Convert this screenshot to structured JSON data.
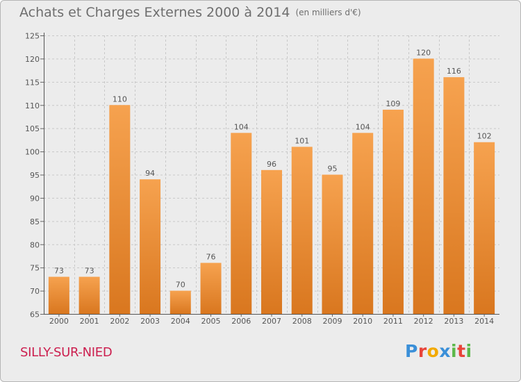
{
  "title": "Achats et Charges Externes 2000 à 2014",
  "unit_note": "(en milliers d'€)",
  "commune": "SILLY-SUR-NIED",
  "logo": "Proxiti",
  "colors": {
    "bar_top": "#f6a24f",
    "bar_bottom": "#d9771f",
    "commune": "#cc1f4f",
    "text": "#6e6e6e"
  },
  "chart_data": {
    "type": "bar",
    "categories": [
      "2000",
      "2001",
      "2002",
      "2003",
      "2004",
      "2005",
      "2006",
      "2007",
      "2008",
      "2009",
      "2010",
      "2011",
      "2012",
      "2013",
      "2014"
    ],
    "values": [
      73,
      73,
      110,
      94,
      70,
      76,
      104,
      96,
      101,
      95,
      104,
      109,
      120,
      116,
      102
    ],
    "title": "Achats et Charges Externes 2000 à 2014",
    "ylim": [
      65,
      125
    ],
    "yticks": [
      65,
      70,
      75,
      80,
      85,
      90,
      95,
      100,
      105,
      110,
      115,
      120,
      125
    ],
    "grid": true
  }
}
